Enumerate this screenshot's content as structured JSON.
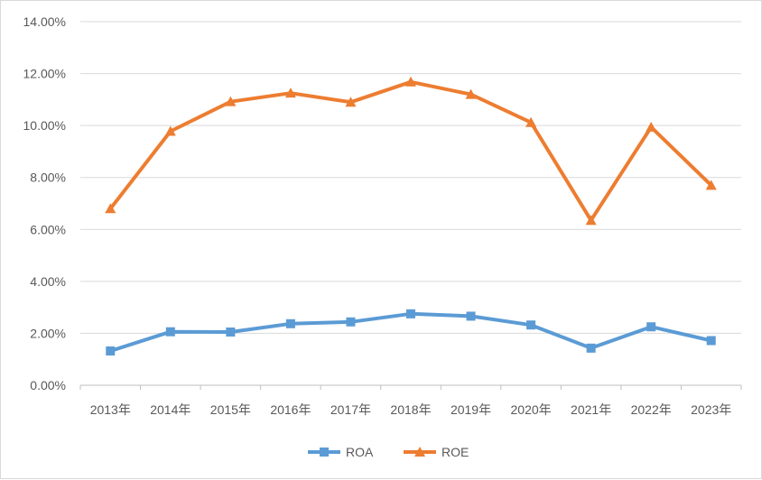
{
  "chart_data": {
    "type": "line",
    "categories": [
      "2013年",
      "2014年",
      "2015年",
      "2016年",
      "2017年",
      "2018年",
      "2019年",
      "2020年",
      "2021年",
      "2022年",
      "2023年"
    ],
    "series": [
      {
        "name": "ROA",
        "color": "#5b9bd5",
        "marker": "square",
        "values": [
          1.32,
          2.06,
          2.05,
          2.37,
          2.44,
          2.75,
          2.66,
          2.32,
          1.43,
          2.25,
          1.72
        ]
      },
      {
        "name": "ROE",
        "color": "#ed7d31",
        "marker": "triangle",
        "values": [
          6.8,
          9.78,
          10.92,
          11.25,
          10.9,
          11.68,
          11.2,
          10.12,
          6.35,
          9.94,
          7.7
        ]
      }
    ],
    "yticks": [
      "0.00%",
      "2.00%",
      "4.00%",
      "6.00%",
      "8.00%",
      "10.00%",
      "12.00%",
      "14.00%"
    ],
    "ylim": [
      0,
      14
    ],
    "grid": true,
    "legend_position": "bottom",
    "gridline_color": "#d9d9d9",
    "axis_color": "#bfbfbf",
    "text_color": "#595959"
  }
}
